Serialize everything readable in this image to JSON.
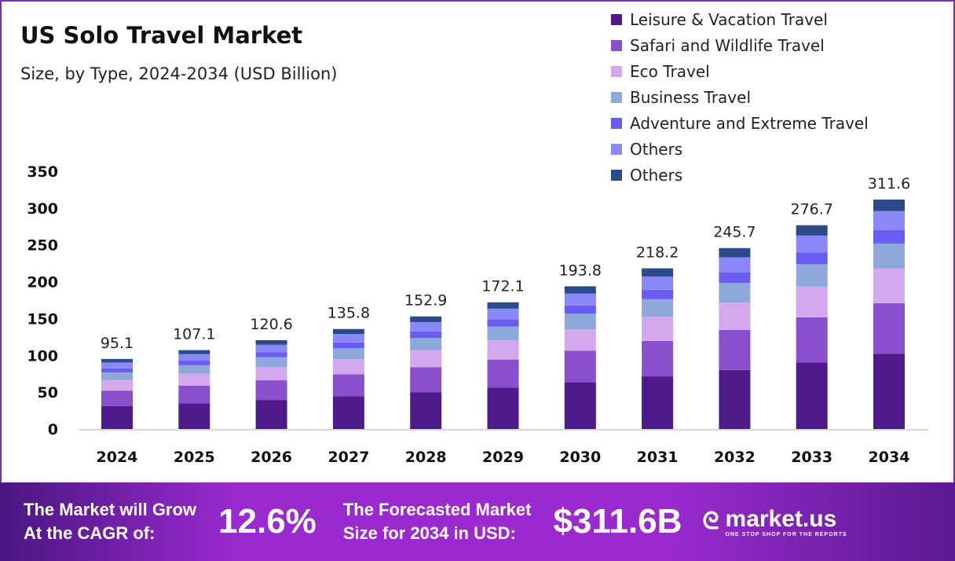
{
  "chart_data": {
    "type": "bar",
    "stacked": true,
    "title": "US Solo Travel Market",
    "subtitle": "Size, by Type, 2024-2034 (USD Billion)",
    "categories": [
      "2024",
      "2025",
      "2026",
      "2027",
      "2028",
      "2029",
      "2030",
      "2031",
      "2032",
      "2033",
      "2034"
    ],
    "totals": [
      "95.1",
      "107.1",
      "120.6",
      "135.8",
      "152.9",
      "172.1",
      "193.8",
      "218.2",
      "245.7",
      "276.7",
      "311.6"
    ],
    "ylim": [
      0,
      350
    ],
    "yticks": [
      "0",
      "50",
      "100",
      "150",
      "200",
      "250",
      "300",
      "350"
    ],
    "grid": false,
    "legend_position": "top-right",
    "series": [
      {
        "name": "Leisure & Vacation Travel",
        "color": "#4e1a8a",
        "values": [
          31.1,
          35.0,
          39.4,
          44.4,
          50.0,
          56.3,
          63.4,
          71.4,
          80.3,
          90.5,
          101.9
        ]
      },
      {
        "name": "Safari and Wildlife Travel",
        "color": "#8a4fcc",
        "values": [
          21.0,
          23.7,
          26.7,
          30.0,
          33.8,
          38.0,
          42.8,
          48.2,
          54.3,
          61.2,
          68.9
        ]
      },
      {
        "name": "Eco Travel",
        "color": "#d4a8ec",
        "values": [
          14.4,
          16.2,
          18.2,
          20.5,
          23.1,
          26.0,
          29.3,
          32.9,
          37.1,
          41.8,
          47.1
        ]
      },
      {
        "name": "Business Travel",
        "color": "#8fa8dc",
        "values": [
          10.4,
          11.7,
          13.1,
          14.8,
          16.7,
          18.8,
          21.1,
          23.8,
          26.8,
          30.2,
          34.0
        ]
      },
      {
        "name": "Adventure and Extreme Travel",
        "color": "#6a5cf0",
        "values": [
          5.5,
          6.2,
          7.0,
          7.9,
          8.9,
          10.0,
          11.2,
          12.7,
          14.3,
          16.0,
          18.1
        ]
      },
      {
        "name": "Others",
        "color": "#8a88f8",
        "values": [
          7.9,
          8.9,
          10.0,
          11.3,
          12.7,
          14.3,
          16.1,
          18.1,
          20.4,
          23.0,
          25.9
        ]
      },
      {
        "name": "Others",
        "color": "#2a4a8a",
        "values": [
          4.8,
          5.4,
          6.2,
          6.9,
          7.7,
          8.7,
          9.9,
          11.1,
          12.5,
          14.0,
          15.7
        ]
      }
    ]
  },
  "banner": {
    "cagr_label_1": "The Market will Grow",
    "cagr_label_2": "At the CAGR of:",
    "cagr": "12.6%",
    "forecast_label_1": "The Forecasted Market",
    "forecast_label_2": "Size for 2034 in USD:",
    "forecast": "$311.6B",
    "logo_name": "market.us",
    "logo_tagline": "ONE STOP SHOP FOR THE REPORTS"
  }
}
